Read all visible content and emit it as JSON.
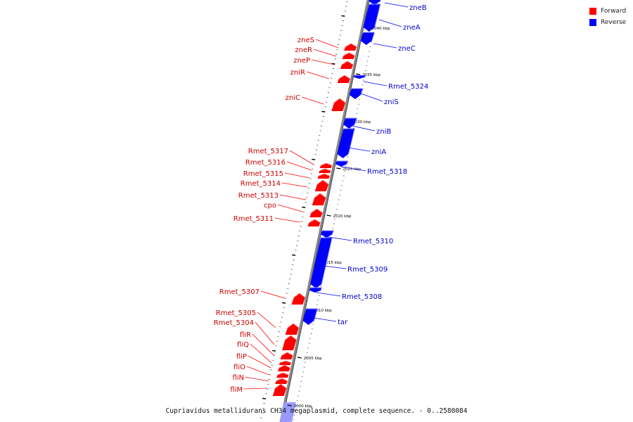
{
  "caption": "Cupriavidus metallidurans CH34 megaplasmid, complete sequence. - 0..2580084",
  "legend": [
    {
      "label": "Forward",
      "color": "#ff0000"
    },
    {
      "label": "Reverse",
      "color": "#0000ff"
    }
  ],
  "colors": {
    "forward": "#ff0000",
    "reverse": "#0000ff",
    "forward_text": "#cc0000",
    "reverse_text": "#0000cc",
    "axis": "#888888",
    "faded": "#9999ff"
  },
  "scale_labels": [
    "2000 kbp",
    "2005 kbp",
    "2010 kbp",
    "2015 kbp",
    "2020 kbp",
    "2025 kbp",
    "2030 kbp",
    "2035 kbp",
    "2040 kbp"
  ],
  "genes": [
    {
      "name": "zneB",
      "strand": "reverse"
    },
    {
      "name": "zneA",
      "strand": "reverse"
    },
    {
      "name": "zneC",
      "strand": "reverse"
    },
    {
      "name": "zneS",
      "strand": "forward"
    },
    {
      "name": "zneR",
      "strand": "forward"
    },
    {
      "name": "zneP",
      "strand": "forward"
    },
    {
      "name": "zniR",
      "strand": "forward"
    },
    {
      "name": "Rmet_5324",
      "strand": "reverse"
    },
    {
      "name": "zniS",
      "strand": "reverse"
    },
    {
      "name": "zniC",
      "strand": "forward"
    },
    {
      "name": "zniB",
      "strand": "reverse"
    },
    {
      "name": "zniA",
      "strand": "reverse"
    },
    {
      "name": "Rmet_5317",
      "strand": "forward"
    },
    {
      "name": "Rmet_5316",
      "strand": "forward"
    },
    {
      "name": "Rmet_5318",
      "strand": "reverse"
    },
    {
      "name": "Rmet_5315",
      "strand": "forward"
    },
    {
      "name": "Rmet_5314",
      "strand": "forward"
    },
    {
      "name": "Rmet_5313",
      "strand": "forward"
    },
    {
      "name": "cpo",
      "strand": "forward"
    },
    {
      "name": "Rmet_5311",
      "strand": "forward"
    },
    {
      "name": "Rmet_5310",
      "strand": "reverse"
    },
    {
      "name": "Rmet_5309",
      "strand": "reverse"
    },
    {
      "name": "Rmet_5307",
      "strand": "forward"
    },
    {
      "name": "Rmet_5308",
      "strand": "reverse"
    },
    {
      "name": "tar",
      "strand": "reverse"
    },
    {
      "name": "Rmet_5305",
      "strand": "forward"
    },
    {
      "name": "Rmet_5304",
      "strand": "forward"
    },
    {
      "name": "fliR",
      "strand": "forward"
    },
    {
      "name": "fliQ",
      "strand": "forward"
    },
    {
      "name": "fliP",
      "strand": "forward"
    },
    {
      "name": "fliO",
      "strand": "forward"
    },
    {
      "name": "fliN",
      "strand": "forward"
    },
    {
      "name": "fliM",
      "strand": "forward"
    }
  ]
}
